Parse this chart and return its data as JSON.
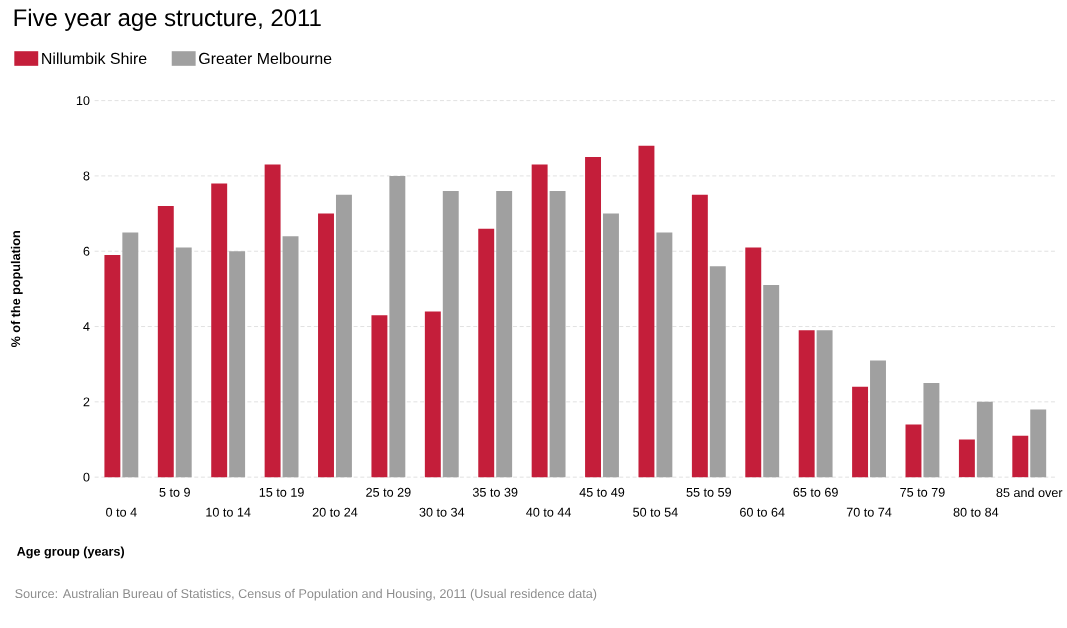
{
  "chart_data": {
    "type": "bar",
    "title": "Five year age structure, 2011",
    "xlabel": "Age group (years)",
    "ylabel": "% of the population",
    "categories": [
      "0 to 4",
      "5 to 9",
      "10 to 14",
      "15 to 19",
      "20 to 24",
      "25 to 29",
      "30 to 34",
      "35 to 39",
      "40 to 44",
      "45 to 49",
      "50 to 54",
      "55 to 59",
      "60 to 64",
      "65 to 69",
      "70 to 74",
      "75 to 79",
      "80 to 84",
      "85 and over"
    ],
    "series": [
      {
        "name": "Nillumbik Shire",
        "color": "#c41e3a",
        "values": [
          5.9,
          7.2,
          7.8,
          8.3,
          7.0,
          4.3,
          4.4,
          6.6,
          8.3,
          8.5,
          8.8,
          7.5,
          6.1,
          3.9,
          2.4,
          1.4,
          1.0,
          1.1
        ]
      },
      {
        "name": "Greater Melbourne",
        "color": "#a0a0a0",
        "values": [
          6.5,
          6.1,
          6.0,
          6.4,
          7.5,
          8.0,
          7.6,
          7.6,
          7.6,
          7.0,
          6.5,
          5.6,
          5.1,
          3.9,
          3.1,
          2.5,
          2.0,
          1.8
        ]
      }
    ],
    "ylim": [
      0,
      10
    ],
    "yticks": [
      0,
      2,
      4,
      6,
      8,
      10
    ],
    "grid": "y",
    "legend": "top left",
    "annotations": [
      "Source: Australian Bureau of Statistics, Census of Population and Housing, 2011 (Usual residence data)"
    ]
  }
}
